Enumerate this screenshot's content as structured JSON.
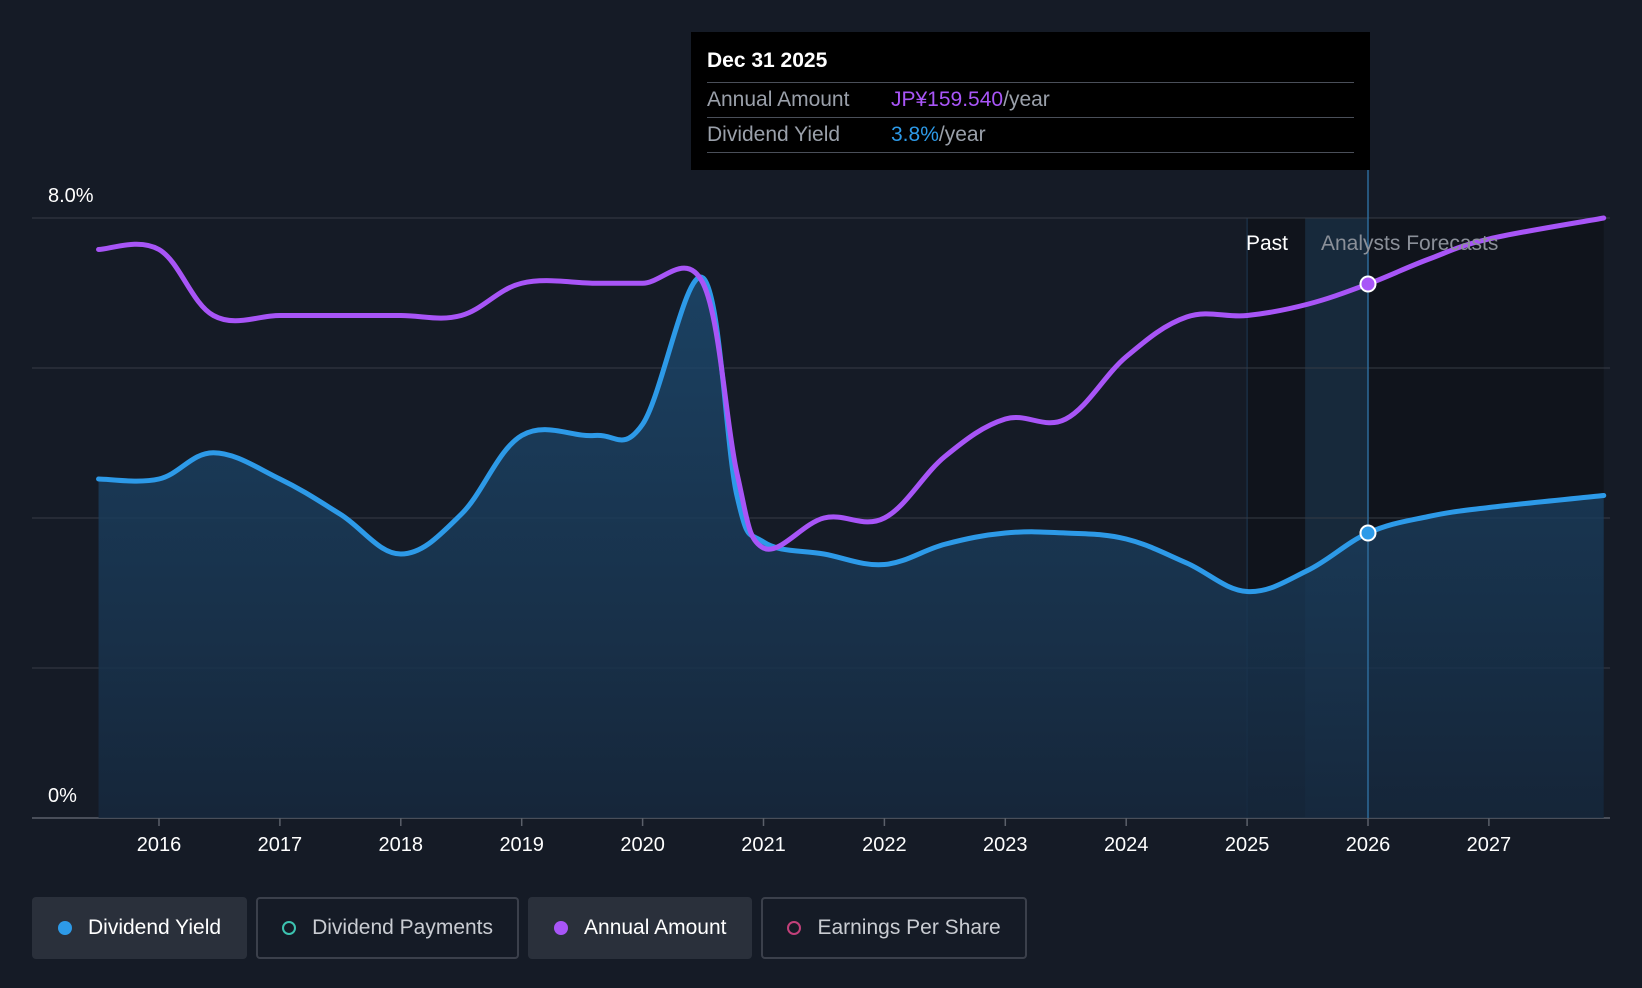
{
  "tooltip": {
    "date": "Dec 31 2025",
    "rows": [
      {
        "label": "Annual Amount",
        "value": "JP¥159.540",
        "unit": "/year"
      },
      {
        "label": "Dividend Yield",
        "value": "3.8%",
        "unit": "/year"
      }
    ]
  },
  "regions": {
    "past": "Past",
    "forecast": "Analysts Forecasts"
  },
  "legend": [
    {
      "label": "Dividend Yield",
      "active": true,
      "color": "#2d9ae8",
      "marker": "filled"
    },
    {
      "label": "Dividend Payments",
      "active": false,
      "color": "#3cc3b0",
      "marker": "ring"
    },
    {
      "label": "Annual Amount",
      "active": true,
      "color": "#a855f7",
      "marker": "filled"
    },
    {
      "label": "Earnings Per Share",
      "active": false,
      "color": "#c2407a",
      "marker": "ring"
    }
  ],
  "chart_data": {
    "type": "line",
    "y_axis_labels": [
      "8.0%",
      "0%"
    ],
    "ylim": [
      0,
      8
    ],
    "xlim": [
      2015.5,
      2027.95
    ],
    "x_ticks": [
      2016,
      2017,
      2018,
      2019,
      2020,
      2021,
      2022,
      2023,
      2024,
      2025,
      2026,
      2027
    ],
    "grid": true,
    "past_shade_start": 2025.0,
    "forecast_start": 2025.48,
    "highlight_x": 2026.0,
    "series": [
      {
        "name": "Dividend Yield",
        "unit": "%",
        "color": "#2d9ae8",
        "area": true,
        "points": [
          [
            2015.5,
            4.52
          ],
          [
            2016.0,
            4.52
          ],
          [
            2016.45,
            4.87
          ],
          [
            2017.0,
            4.52
          ],
          [
            2017.5,
            4.05
          ],
          [
            2018.0,
            3.52
          ],
          [
            2018.5,
            4.05
          ],
          [
            2019.0,
            5.1
          ],
          [
            2019.6,
            5.1
          ],
          [
            2020.0,
            5.25
          ],
          [
            2020.5,
            7.2
          ],
          [
            2020.78,
            4.3
          ],
          [
            2021.0,
            3.68
          ],
          [
            2021.5,
            3.52
          ],
          [
            2022.0,
            3.38
          ],
          [
            2022.5,
            3.65
          ],
          [
            2023.0,
            3.8
          ],
          [
            2023.5,
            3.8
          ],
          [
            2024.0,
            3.72
          ],
          [
            2024.5,
            3.4
          ],
          [
            2025.0,
            3.02
          ],
          [
            2025.5,
            3.3
          ],
          [
            2026.0,
            3.8
          ],
          [
            2026.5,
            4.02
          ],
          [
            2027.0,
            4.14
          ],
          [
            2027.95,
            4.3
          ]
        ]
      },
      {
        "name": "Annual Amount",
        "unit": "index",
        "color": "#a855f7",
        "area": false,
        "points": [
          [
            2015.5,
            7.58
          ],
          [
            2016.0,
            7.58
          ],
          [
            2016.45,
            6.7
          ],
          [
            2017.0,
            6.7
          ],
          [
            2017.5,
            6.7
          ],
          [
            2018.0,
            6.7
          ],
          [
            2018.5,
            6.7
          ],
          [
            2019.0,
            7.13
          ],
          [
            2019.6,
            7.13
          ],
          [
            2020.0,
            7.13
          ],
          [
            2020.5,
            7.13
          ],
          [
            2020.78,
            4.6
          ],
          [
            2021.0,
            3.6
          ],
          [
            2021.5,
            4.0
          ],
          [
            2022.0,
            4.0
          ],
          [
            2022.5,
            4.82
          ],
          [
            2023.0,
            5.32
          ],
          [
            2023.5,
            5.32
          ],
          [
            2024.0,
            6.15
          ],
          [
            2024.5,
            6.68
          ],
          [
            2025.0,
            6.7
          ],
          [
            2025.5,
            6.85
          ],
          [
            2026.0,
            7.12
          ],
          [
            2026.5,
            7.45
          ],
          [
            2027.0,
            7.72
          ],
          [
            2027.95,
            8.0
          ]
        ]
      }
    ]
  }
}
